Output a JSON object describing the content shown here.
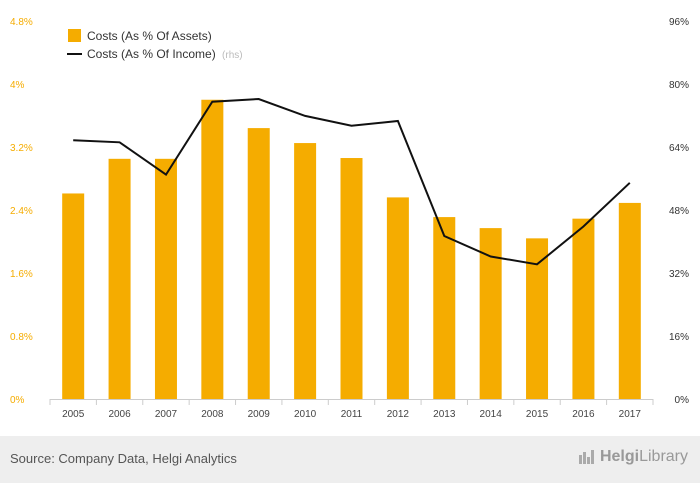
{
  "chart_data": {
    "type": "bar+line",
    "categories": [
      "2005",
      "2006",
      "2007",
      "2008",
      "2009",
      "2010",
      "2011",
      "2012",
      "2013",
      "2014",
      "2015",
      "2016",
      "2017"
    ],
    "series": [
      {
        "name": "Costs (As % Of Assets)",
        "type": "bar",
        "axis": "left",
        "color": "#f5ac00",
        "values": [
          2.61,
          3.05,
          3.05,
          3.8,
          3.44,
          3.25,
          3.06,
          2.56,
          2.31,
          2.17,
          2.04,
          2.29,
          2.49
        ]
      },
      {
        "name": "Costs (As % Of Income)",
        "name_suffix": "(rhs)",
        "type": "line",
        "axis": "right",
        "color": "#111111",
        "values": [
          65.7,
          65.2,
          57.0,
          75.5,
          76.2,
          71.9,
          69.4,
          70.6,
          41.4,
          36.2,
          34.2,
          43.8,
          54.9
        ]
      }
    ],
    "y_left": {
      "min": 0,
      "max": 4.8,
      "ticks": [
        "0%",
        "0.8%",
        "1.6%",
        "2.4%",
        "3.2%",
        "4%",
        "4.8%"
      ]
    },
    "y_right": {
      "min": 0,
      "max": 96,
      "ticks": [
        "0%",
        "16%",
        "32%",
        "48%",
        "64%",
        "80%",
        "96%"
      ]
    },
    "legend_position": "top-left",
    "grid": false
  },
  "footer": {
    "source": "Source: Company Data, Helgi Analytics",
    "logo_part1": "Helgi",
    "logo_part2": "Library"
  },
  "colors": {
    "bar": "#f5ac00",
    "line": "#111111",
    "left_axis": "#f5ac00",
    "right_axis": "#333333"
  }
}
